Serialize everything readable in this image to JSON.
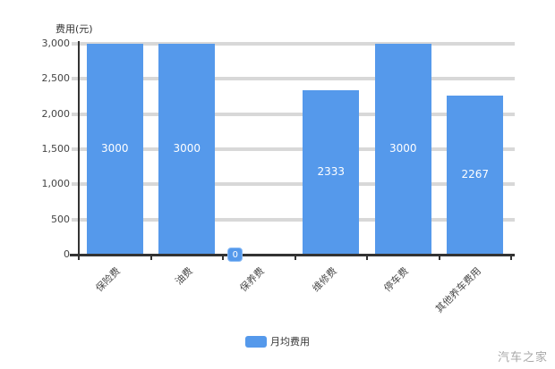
{
  "watermark": {
    "text": "汽车之家"
  },
  "legend": {
    "label": "月均费用"
  },
  "colors": {
    "bar": "#5599EB",
    "gridline": "#D8D8D8",
    "axis": "#333333",
    "tick_text": "#444444",
    "value_label": "#FFFFFF",
    "watermark": "#A8A8A8"
  },
  "chart_data": {
    "type": "bar",
    "title": "",
    "ylabel": "费用(元)",
    "xlabel": "",
    "categories": [
      "保险费",
      "油费",
      "保养费",
      "维修费",
      "停车费",
      "其他养车费用"
    ],
    "series": [
      {
        "name": "月均费用",
        "values": [
          3000,
          3000,
          0,
          2333,
          3000,
          2267
        ]
      }
    ],
    "ylim": [
      0,
      3000
    ],
    "ytick_step": 500,
    "ytick_labels": [
      "3,000",
      "2,500",
      "2,000",
      "1,500",
      "1,000",
      "500",
      "0"
    ],
    "grid": true,
    "legend_position": "bottom",
    "bar_color": "#5599EB",
    "value_labels_shown": true
  }
}
